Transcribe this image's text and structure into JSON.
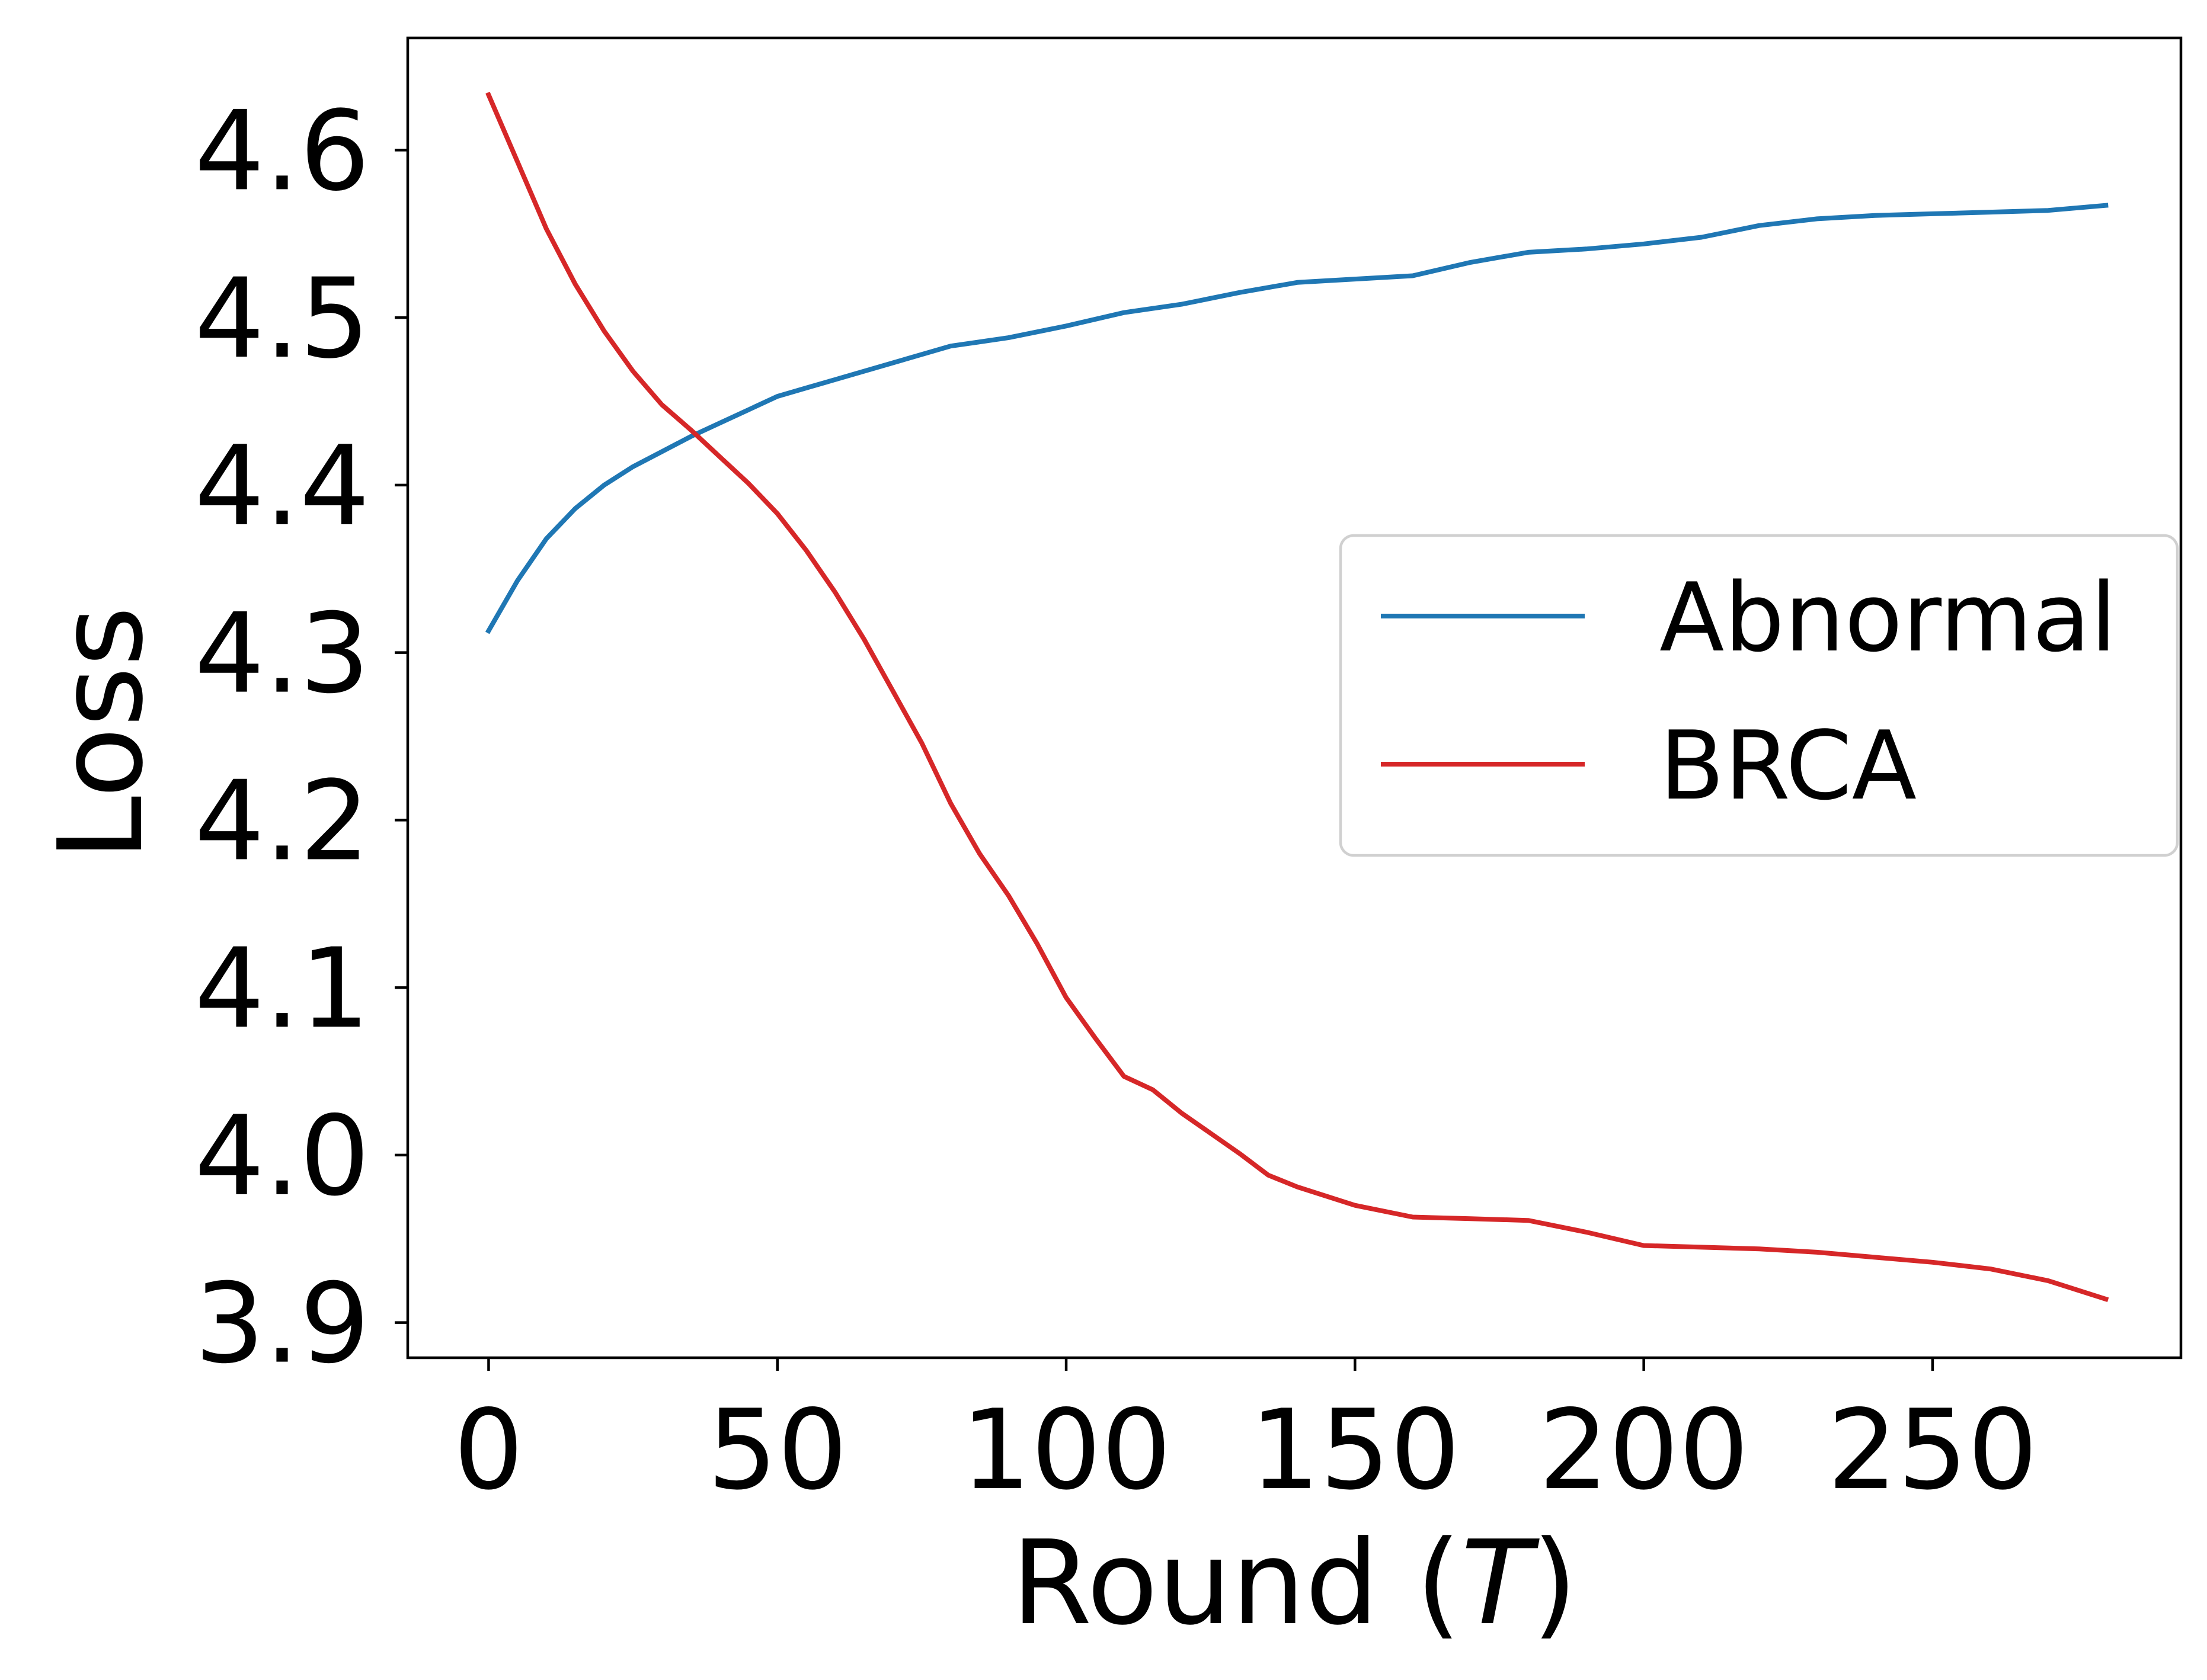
{
  "chart_data": {
    "type": "line",
    "title": "",
    "xlabel": "Round (",
    "xlabel_var": "T",
    "xlabel_close": ")",
    "ylabel": "Loss",
    "xlim": [
      -14,
      293
    ],
    "ylim": [
      3.879,
      4.667
    ],
    "xticks": [
      0,
      50,
      100,
      150,
      200,
      250
    ],
    "xtick_labels": [
      "0",
      "50",
      "100",
      "150",
      "200",
      "250"
    ],
    "yticks": [
      3.9,
      4.0,
      4.1,
      4.2,
      4.3,
      4.4,
      4.5,
      4.6
    ],
    "ytick_labels": [
      "3.9",
      "4.0",
      "4.1",
      "4.2",
      "4.3",
      "4.4",
      "4.5",
      "4.6"
    ],
    "grid": false,
    "legend_position": "center-right",
    "series": [
      {
        "name": "Abnormal",
        "color": "#1f77b4",
        "x": [
          0,
          5,
          10,
          15,
          20,
          25,
          30,
          35,
          40,
          45,
          50,
          55,
          60,
          70,
          80,
          90,
          100,
          110,
          120,
          130,
          140,
          150,
          160,
          170,
          180,
          190,
          200,
          210,
          220,
          230,
          240,
          250,
          260,
          270,
          280
        ],
        "y": [
          4.313,
          4.343,
          4.368,
          4.386,
          4.4,
          4.411,
          4.42,
          4.429,
          4.437,
          4.445,
          4.453,
          4.458,
          4.463,
          4.473,
          4.483,
          4.488,
          4.495,
          4.503,
          4.508,
          4.515,
          4.521,
          4.523,
          4.525,
          4.533,
          4.539,
          4.541,
          4.544,
          4.548,
          4.555,
          4.559,
          4.561,
          4.562,
          4.563,
          4.564,
          4.567
        ]
      },
      {
        "name": "BRCA",
        "color": "#d62728",
        "x": [
          0,
          5,
          10,
          15,
          20,
          25,
          30,
          35,
          40,
          45,
          50,
          55,
          60,
          65,
          70,
          75,
          80,
          85,
          90,
          95,
          100,
          105,
          110,
          115,
          120,
          125,
          130,
          135,
          140,
          150,
          160,
          170,
          180,
          190,
          200,
          210,
          220,
          230,
          240,
          250,
          260,
          270,
          280
        ],
        "y": [
          4.633,
          4.593,
          4.553,
          4.52,
          4.492,
          4.468,
          4.448,
          4.433,
          4.417,
          4.401,
          4.383,
          4.361,
          4.336,
          4.308,
          4.277,
          4.246,
          4.21,
          4.18,
          4.155,
          4.126,
          4.094,
          4.07,
          4.047,
          4.039,
          4.025,
          4.013,
          4.001,
          3.988,
          3.981,
          3.97,
          3.963,
          3.962,
          3.961,
          3.954,
          3.946,
          3.945,
          3.944,
          3.942,
          3.939,
          3.936,
          3.932,
          3.925,
          3.914
        ]
      }
    ]
  }
}
